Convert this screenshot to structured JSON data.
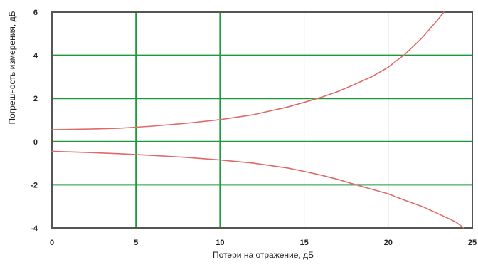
{
  "chart_data": {
    "type": "line",
    "title": "",
    "xlabel": "Потери на отражение, дБ",
    "ylabel": "Погрешность измерения, дБ",
    "xlim": [
      0,
      25
    ],
    "ylim": [
      -4,
      6
    ],
    "x_ticks": [
      0,
      5,
      10,
      15,
      20,
      25
    ],
    "y_ticks": [
      -4,
      -2,
      0,
      2,
      4,
      6
    ],
    "x_tick_labels": [
      "0",
      "5",
      "10",
      "15",
      "20",
      "25"
    ],
    "y_tick_labels": [
      "-4",
      "-2",
      "0",
      "2",
      "4",
      "6"
    ],
    "grid": true,
    "series": [
      {
        "color": "#e06a6a",
        "x": [
          0,
          2,
          4,
          6,
          8,
          10,
          12,
          14,
          15,
          16,
          17,
          18,
          19,
          20,
          21,
          22,
          23,
          23.3
        ],
        "y": [
          0.55,
          0.58,
          0.62,
          0.72,
          0.85,
          1.02,
          1.25,
          1.6,
          1.82,
          2.05,
          2.32,
          2.65,
          3.0,
          3.45,
          4.05,
          4.8,
          5.7,
          6.0
        ]
      },
      {
        "color": "#e06a6a",
        "x": [
          0,
          2,
          4,
          6,
          8,
          10,
          12,
          14,
          15,
          16,
          17,
          18,
          19,
          20,
          21,
          22,
          23,
          24,
          24.5
        ],
        "y": [
          -0.45,
          -0.5,
          -0.56,
          -0.64,
          -0.73,
          -0.85,
          -1.0,
          -1.22,
          -1.38,
          -1.55,
          -1.75,
          -1.98,
          -2.2,
          -2.42,
          -2.72,
          -3.0,
          -3.35,
          -3.72,
          -4.0
        ]
      }
    ],
    "gridline_colors": {
      "major": "#1a9a3a",
      "minor": "#c8c8c8",
      "frame": "#555555"
    }
  }
}
